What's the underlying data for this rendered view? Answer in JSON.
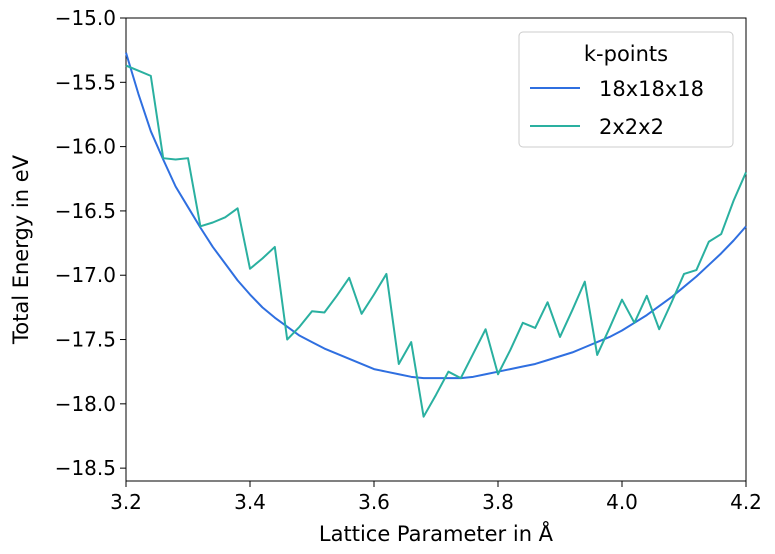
{
  "chart_data": {
    "type": "line",
    "xlabel": "Lattice Parameter in Å",
    "ylabel": "Total Energy in eV",
    "xlim": [
      3.2,
      4.2
    ],
    "ylim": [
      -18.6,
      -15.0
    ],
    "xticks": [
      "3.2",
      "3.4",
      "3.6",
      "3.8",
      "4.0",
      "4.2"
    ],
    "xtick_values": [
      3.2,
      3.4,
      3.6,
      3.8,
      4.0,
      4.2
    ],
    "yticks": [
      "−15.0",
      "−15.5",
      "−16.0",
      "−16.5",
      "−17.0",
      "−17.5",
      "−18.0",
      "−18.5"
    ],
    "ytick_values": [
      -15.0,
      -15.5,
      -16.0,
      -16.5,
      -17.0,
      -17.5,
      -18.0,
      -18.5
    ],
    "grid": false,
    "legend": {
      "title": "k-points",
      "placement": "top-right"
    },
    "series": [
      {
        "name": "18x18x18",
        "color": "#2f6fe0",
        "x": [
          3.2,
          3.22,
          3.24,
          3.26,
          3.28,
          3.3,
          3.32,
          3.34,
          3.36,
          3.38,
          3.4,
          3.42,
          3.44,
          3.46,
          3.48,
          3.5,
          3.52,
          3.54,
          3.56,
          3.58,
          3.6,
          3.62,
          3.64,
          3.66,
          3.68,
          3.7,
          3.72,
          3.74,
          3.76,
          3.78,
          3.8,
          3.82,
          3.84,
          3.86,
          3.88,
          3.9,
          3.92,
          3.94,
          3.96,
          3.98,
          4.0,
          4.02,
          4.04,
          4.06,
          4.08,
          4.1,
          4.12,
          4.14,
          4.16,
          4.18,
          4.2
        ],
        "y": [
          -15.27,
          -15.59,
          -15.88,
          -16.1,
          -16.31,
          -16.47,
          -16.63,
          -16.78,
          -16.91,
          -17.04,
          -17.15,
          -17.25,
          -17.33,
          -17.4,
          -17.47,
          -17.52,
          -17.57,
          -17.61,
          -17.65,
          -17.69,
          -17.73,
          -17.75,
          -17.77,
          -17.79,
          -17.8,
          -17.8,
          -17.8,
          -17.8,
          -17.79,
          -17.77,
          -17.75,
          -17.73,
          -17.71,
          -17.69,
          -17.66,
          -17.63,
          -17.6,
          -17.56,
          -17.52,
          -17.48,
          -17.43,
          -17.37,
          -17.31,
          -17.24,
          -17.17,
          -17.09,
          -17.01,
          -16.92,
          -16.83,
          -16.73,
          -16.62
        ]
      },
      {
        "name": "2x2x2",
        "color": "#2ab0a0",
        "x": [
          3.2,
          3.22,
          3.24,
          3.26,
          3.28,
          3.3,
          3.32,
          3.34,
          3.36,
          3.38,
          3.4,
          3.42,
          3.44,
          3.46,
          3.48,
          3.5,
          3.52,
          3.54,
          3.56,
          3.58,
          3.6,
          3.62,
          3.64,
          3.66,
          3.68,
          3.7,
          3.72,
          3.74,
          3.76,
          3.78,
          3.8,
          3.82,
          3.84,
          3.86,
          3.88,
          3.9,
          3.92,
          3.94,
          3.96,
          3.98,
          4.0,
          4.02,
          4.04,
          4.06,
          4.08,
          4.1,
          4.12,
          4.14,
          4.16,
          4.18,
          4.2
        ],
        "y": [
          -15.37,
          -15.41,
          -15.45,
          -16.09,
          -16.1,
          -16.09,
          -16.62,
          -16.59,
          -16.55,
          -16.48,
          -16.95,
          -16.87,
          -16.78,
          -17.5,
          -17.4,
          -17.28,
          -17.29,
          -17.16,
          -17.02,
          -17.3,
          -17.15,
          -16.99,
          -17.69,
          -17.52,
          -18.1,
          -17.93,
          -17.75,
          -17.8,
          -17.61,
          -17.42,
          -17.77,
          -17.58,
          -17.37,
          -17.41,
          -17.21,
          -17.48,
          -17.27,
          -17.05,
          -17.62,
          -17.41,
          -17.19,
          -17.37,
          -17.16,
          -17.42,
          -17.21,
          -16.99,
          -16.96,
          -16.74,
          -16.68,
          -16.42,
          -16.2
        ]
      }
    ]
  }
}
